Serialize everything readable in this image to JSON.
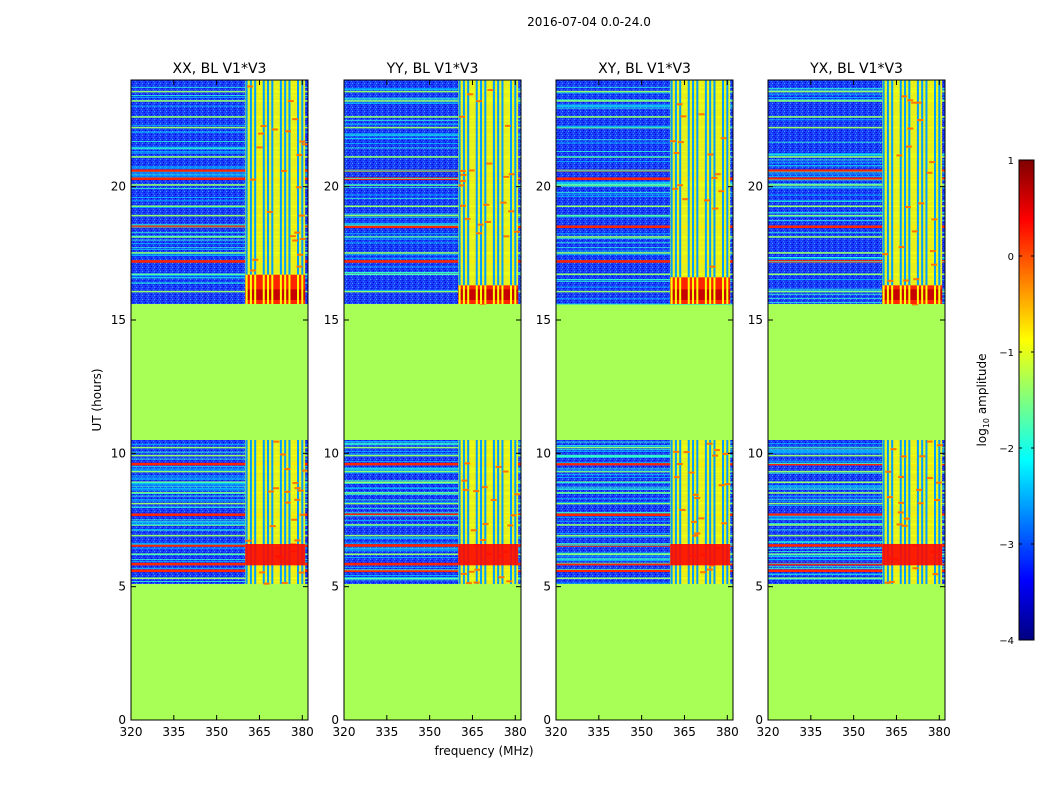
{
  "suptitle": "2016-07-04 0.0-24.0",
  "colormap": [
    "#00007f",
    "#0000ff",
    "#007fff",
    "#00ffff",
    "#7fff7f",
    "#ffff00",
    "#ff7f00",
    "#ff0000",
    "#7f0000"
  ],
  "chart_data": {
    "type": "heatmap",
    "title": "2016-07-04 0.0-24.0",
    "xlabel": "frequency (MHz)",
    "ylabel": "UT (hours)",
    "xlim": [
      320,
      382
    ],
    "ylim": [
      0,
      24
    ],
    "xticks": [
      "320",
      "335",
      "350",
      "365",
      "380"
    ],
    "xtick_values": [
      320,
      335,
      350,
      365,
      380
    ],
    "yticks": [
      "0",
      "5",
      "10",
      "15",
      "20"
    ],
    "ytick_values": [
      0,
      5,
      10,
      15,
      20
    ],
    "panels": [
      {
        "title": "XX, BL V1*V3",
        "rfi_band_start": 360,
        "strong_block_range": [
          15.6,
          16.7
        ]
      },
      {
        "title": "YY, BL V1*V3",
        "rfi_band_start": 360,
        "strong_block_range": [
          15.6,
          16.3
        ]
      },
      {
        "title": "XY, BL V1*V3",
        "rfi_band_start": 360,
        "strong_block_range": [
          15.6,
          16.6
        ]
      },
      {
        "title": "YX, BL V1*V3",
        "rfi_band_start": 360,
        "strong_block_range": [
          15.6,
          16.3
        ]
      }
    ],
    "observed_time_ranges": [
      [
        5.1,
        10.5
      ],
      [
        15.6,
        24.0
      ]
    ],
    "masked_value": -1.3,
    "colorbar": {
      "label": "log10 amplitude",
      "label_prefix": "log",
      "label_sub": "10",
      "label_suffix": " amplitude",
      "range": [
        -4,
        1
      ],
      "ticks": [
        "1",
        "0",
        "−1",
        "−2",
        "−3",
        "−4"
      ],
      "tick_values": [
        1,
        0,
        -1,
        -2,
        -3,
        -4
      ]
    }
  }
}
